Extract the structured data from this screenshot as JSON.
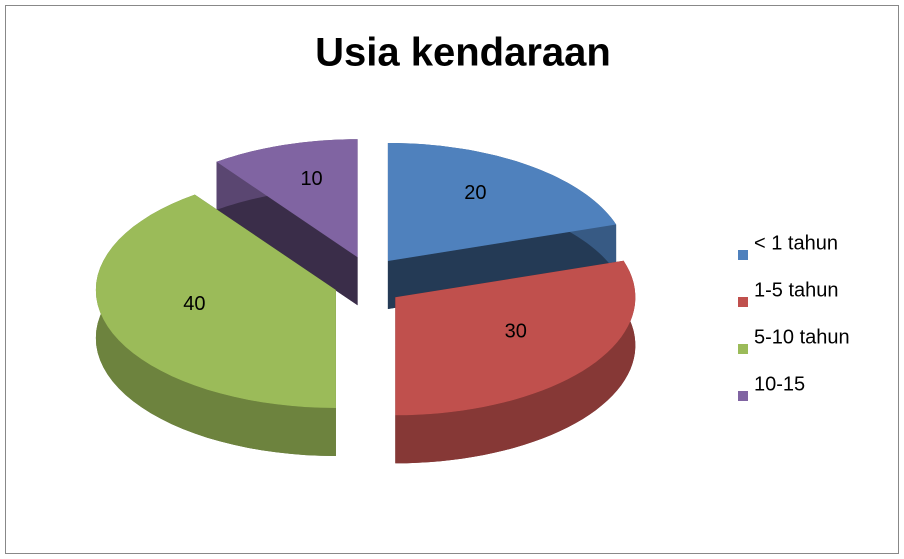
{
  "chart_data": {
    "type": "pie",
    "title": "Usia kendaraan",
    "categories": [
      "< 1 tahun",
      "1-5 tahun",
      "5-10 tahun",
      "10-15"
    ],
    "values": [
      20,
      30,
      40,
      10
    ],
    "colors": [
      "#4f81bd",
      "#c0504d",
      "#9bbb59",
      "#8064a2"
    ],
    "legend": "right"
  }
}
